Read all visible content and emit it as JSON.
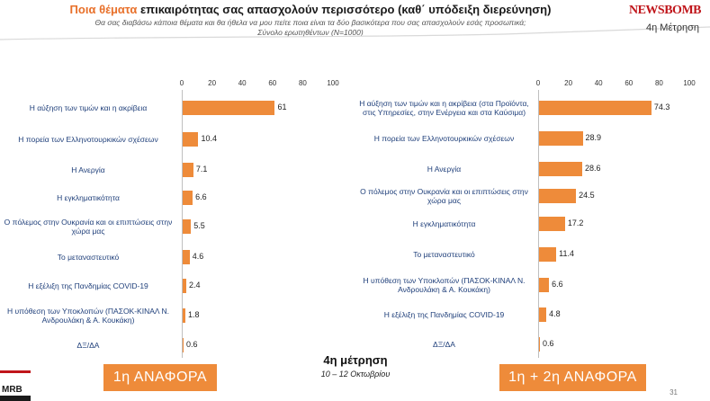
{
  "header": {
    "title_highlight": "Ποια θέματα",
    "title_rest": " επικαιρότητας σας απασχολούν περισσότερο (καθ΄ υπόδειξη διερεύνηση)",
    "subtitle_line1": "Θα σας διαβάσω κάποια θέματα και θα ήθελα να μου πείτε ποια είναι τα δύο βασικότερα που σας απασχολούν εσάς προσωπικά;",
    "subtitle_line2": "Σύνολο ερωτηθέντων (N=1000)",
    "logo": "NEWSBOMB",
    "wave_label": "4η Μέτρηση"
  },
  "footer": {
    "left_button": "1η ΑΝΑΦΟΡΑ",
    "right_button": "1η + 2η ΑΝΑΦΟΡΑ",
    "center_title": "4η μέτρηση",
    "center_dates": "10 – 12 Οκτωβρίου",
    "page_number": "31"
  },
  "colors": {
    "bar": "#ee8b3a",
    "label": "#1f3f7a",
    "highlight": "#e8702a",
    "logo": "#c0161b"
  },
  "chart_data": [
    {
      "type": "bar",
      "orientation": "horizontal",
      "title": "1η ΑΝΑΦΟΡΑ",
      "xlim": [
        0,
        100
      ],
      "ticks": [
        0,
        20,
        40,
        60,
        80,
        100
      ],
      "categories": [
        "Η αύξηση των τιμών και η ακρίβεια",
        "Η πορεία των Ελληνοτουρκικών σχέσεων",
        "Η Ανεργία",
        "Η εγκληματικότητα",
        "Ο πόλεμος στην Ουκρανία και οι επιπτώσεις στην χώρα μας",
        "Το μεταναστευτικό",
        "Η εξέλιξη της Πανδημίας COVID-19",
        "Η υπόθεση των Υποκλοπών (ΠΑΣΟΚ-ΚΙΝΑΛ Ν. Ανδρουλάκη & Α. Κουκάκη)",
        "ΔΞ/ΔΑ"
      ],
      "values": [
        61,
        10.4,
        7.1,
        6.6,
        5.5,
        4.6,
        2.4,
        1.8,
        0.6
      ],
      "value_labels": [
        "61",
        "10.4",
        "7.1",
        "6.6",
        "5.5",
        "4.6",
        "2.4",
        "1.8",
        "0.6"
      ]
    },
    {
      "type": "bar",
      "orientation": "horizontal",
      "title": "1η + 2η ΑΝΑΦΟΡΑ",
      "xlim": [
        0,
        100
      ],
      "ticks": [
        0,
        20,
        40,
        60,
        80,
        100
      ],
      "categories": [
        "Η αύξηση των τιμών και η ακρίβεια (στα Προϊόντα, στις Υπηρεσίες, στην Ενέργεια και στα Καύσιμα)",
        "Η πορεία των Ελληνοτουρκικών σχέσεων",
        "Η Ανεργία",
        "Ο πόλεμος στην Ουκρανία και οι επιπτώσεις στην χώρα μας",
        "Η εγκληματικότητα",
        "Το μεταναστευτικό",
        "Η υπόθεση των Υποκλοπών (ΠΑΣΟΚ-ΚΙΝΑΛ Ν. Ανδρουλάκη & Α. Κουκάκη)",
        "Η εξέλιξη της Πανδημίας COVID-19",
        "ΔΞ/ΔΑ"
      ],
      "values": [
        74.3,
        28.9,
        28.6,
        24.5,
        17.2,
        11.4,
        6.6,
        4.8,
        0.6
      ],
      "value_labels": [
        "74.3",
        "28.9",
        "28.6",
        "24.5",
        "17.2",
        "11.4",
        "6.6",
        "4.8",
        "0.6"
      ]
    }
  ]
}
